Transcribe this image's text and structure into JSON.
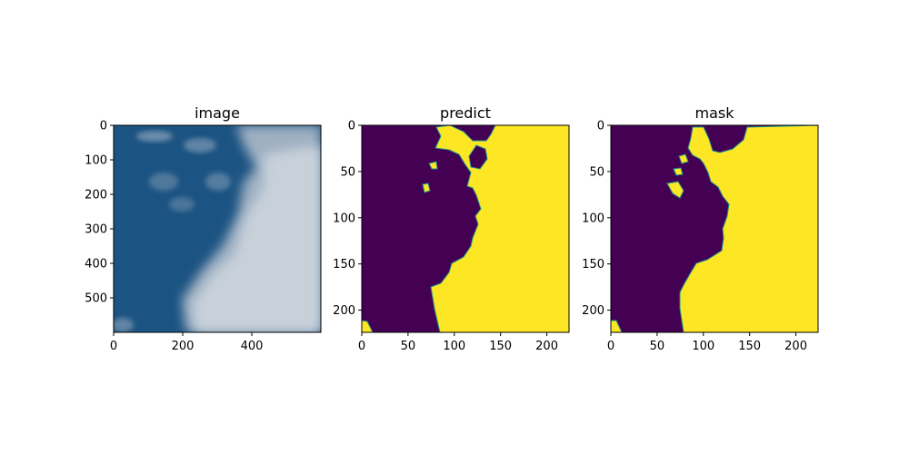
{
  "chart_data": [
    {
      "type": "heatmap",
      "title": "image",
      "xlim": [
        0,
        600
      ],
      "ylim": [
        600,
        0
      ],
      "x_ticks": [
        0,
        200,
        400
      ],
      "y_ticks": [
        0,
        100,
        200,
        300,
        400,
        500
      ],
      "colors": {
        "sky": "#124a7a",
        "sky_light": "#2f6592",
        "cloud": "#c8d1da",
        "cloud_mid": "#9fb0c2"
      }
    },
    {
      "type": "heatmap",
      "title": "predict",
      "xlim": [
        0,
        224
      ],
      "ylim": [
        224,
        0
      ],
      "x_ticks": [
        0,
        50,
        100,
        150,
        200
      ],
      "y_ticks": [
        0,
        50,
        100,
        150,
        200
      ],
      "colors": {
        "low": "#440154",
        "high": "#fde725",
        "edge": "#21918c"
      }
    },
    {
      "type": "heatmap",
      "title": "mask",
      "xlim": [
        0,
        224
      ],
      "ylim": [
        224,
        0
      ],
      "x_ticks": [
        0,
        50,
        100,
        150,
        200
      ],
      "y_ticks": [
        0,
        50,
        100,
        150,
        200
      ],
      "colors": {
        "low": "#440154",
        "high": "#fde725",
        "edge": "#21918c"
      }
    }
  ]
}
